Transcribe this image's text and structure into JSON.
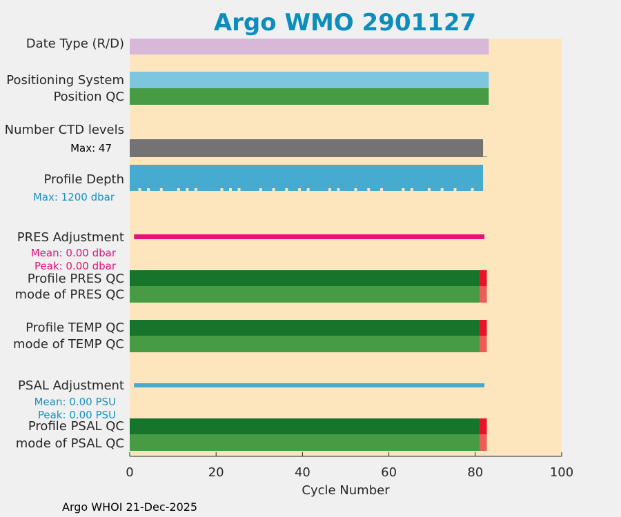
{
  "colors": {
    "background": "#f0f0f0",
    "plot_bg": "#fde5bd",
    "title": "#0c8dbc",
    "date_type": "#d8b8d8",
    "positioning": "#7ec5de",
    "good_qc": "#479b44",
    "profile_qc": "#16752a",
    "bad_qc_bright": "#e8132a",
    "bad_qc_light": "#ef5b57",
    "ctd": "#737373",
    "depth": "#45abd1",
    "pres_adj": "#e8107a",
    "psal_adj": "#45abd1",
    "pres_text": "#e8107a",
    "psal_text": "#1a8fc0",
    "depth_text": "#1a8fc0"
  },
  "chart_data": {
    "type": "bar",
    "title": "Argo WMO 2901127",
    "xlabel": "Cycle Number",
    "ylabel": "",
    "xlim": [
      0,
      100
    ],
    "xticks": [
      "0",
      "20",
      "40",
      "60",
      "80",
      "100"
    ],
    "rows": [
      {
        "label": "Date Type (R/D)",
        "start": 0,
        "end": 82
      },
      {
        "label": "Positioning System",
        "start": 0,
        "end": 82
      },
      {
        "label": "Position QC",
        "start": 0,
        "end": 82
      },
      {
        "label": "Number CTD levels",
        "start": 0,
        "end": 81
      },
      {
        "label": "Profile Depth",
        "start": 0,
        "end": 81
      },
      {
        "label": "PRES Adjustment",
        "start": 1,
        "end": 81
      },
      {
        "label": "Profile PRES QC",
        "start": 0,
        "end": 82,
        "bad_from": 81
      },
      {
        "label": "mode of PRES QC",
        "start": 0,
        "end": 82,
        "bad_from": 81
      },
      {
        "label": "Profile TEMP QC",
        "start": 0,
        "end": 82,
        "bad_from": 81
      },
      {
        "label": "mode of TEMP QC",
        "start": 0,
        "end": 82,
        "bad_from": 81
      },
      {
        "label": "PSAL Adjustment",
        "start": 1,
        "end": 81
      },
      {
        "label": "Profile PSAL QC",
        "start": 0,
        "end": 82,
        "bad_from": 81
      },
      {
        "label": "mode of PSAL QC",
        "start": 0,
        "end": 82,
        "bad_from": 81
      }
    ],
    "annotations": {
      "ctd_max": "Max: 47",
      "depth_max": "Max: 1200 dbar",
      "pres_mean": "Mean: 0.00 dbar",
      "pres_peak": "Peak: 0.00 dbar",
      "psal_mean": "Mean: 0.00 PSU",
      "psal_peak": "Peak: 0.00 PSU"
    },
    "depth_gap_cycles": [
      2,
      4,
      7,
      11,
      13,
      15,
      21,
      23,
      25,
      30,
      33,
      36,
      39,
      41,
      46,
      48,
      52,
      55,
      58,
      63,
      65,
      69,
      72,
      75,
      79
    ]
  },
  "footer": "Argo WHOI 21-Dec-2025"
}
